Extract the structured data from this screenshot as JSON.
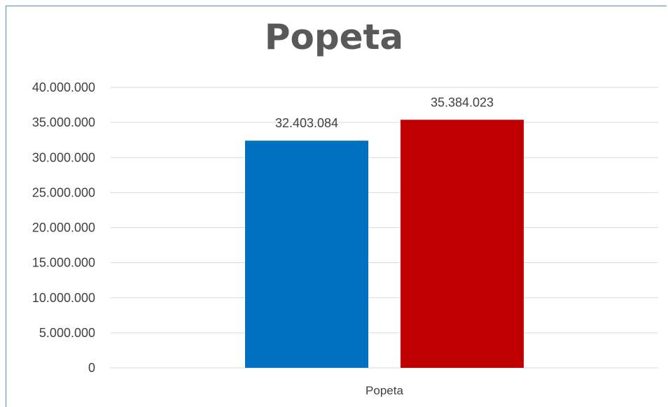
{
  "chart_data": {
    "type": "bar",
    "title": "Popeta",
    "xlabel": "",
    "ylabel": "",
    "categories": [
      "Popeta"
    ],
    "series": [
      {
        "values": [
          32403084
        ],
        "color": "#0070c0",
        "value_label": "32.403.084"
      },
      {
        "values": [
          35384023
        ],
        "color": "#c00000",
        "value_label": "35.384.023"
      }
    ],
    "ylim": [
      0,
      40000000
    ],
    "y_ticks": [
      {
        "value": 0,
        "label": "0"
      },
      {
        "value": 5000000,
        "label": "5.000.000"
      },
      {
        "value": 10000000,
        "label": "10.000.000"
      },
      {
        "value": 15000000,
        "label": "15.000.000"
      },
      {
        "value": 20000000,
        "label": "20.000.000"
      },
      {
        "value": 25000000,
        "label": "25.000.000"
      },
      {
        "value": 30000000,
        "label": "30.000.000"
      },
      {
        "value": 35000000,
        "label": "35.000.000"
      },
      {
        "value": 40000000,
        "label": "40.000.000"
      }
    ],
    "grid": true,
    "legend": "none",
    "gridline_color": "#d9d9d9"
  }
}
